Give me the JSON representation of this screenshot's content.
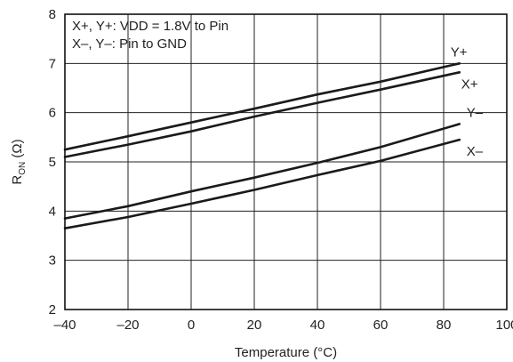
{
  "chart_data": {
    "type": "line",
    "title": "",
    "xlabel": "Temperature (°C)",
    "ylabel": {
      "main": "R",
      "sub": "ON",
      "unit": " (Ω)"
    },
    "xlim": [
      -40,
      100
    ],
    "ylim": [
      2,
      8
    ],
    "xticks": [
      -40,
      -20,
      0,
      20,
      40,
      60,
      80,
      100
    ],
    "yticks": [
      2,
      3,
      4,
      5,
      6,
      7,
      8
    ],
    "grid": true,
    "annotations": [
      "X+, Y+: VDD = 1.8V to Pin",
      "X–, Y–: Pin to GND"
    ],
    "series": [
      {
        "name": "Y+",
        "x": [
          -40,
          -20,
          0,
          20,
          40,
          60,
          85
        ],
        "y": [
          5.25,
          5.52,
          5.8,
          6.08,
          6.37,
          6.63,
          7.0
        ]
      },
      {
        "name": "X+",
        "x": [
          -40,
          -20,
          0,
          20,
          40,
          60,
          85
        ],
        "y": [
          5.1,
          5.35,
          5.62,
          5.92,
          6.2,
          6.47,
          6.82
        ]
      },
      {
        "name": "Y–",
        "x": [
          -40,
          -20,
          0,
          20,
          40,
          60,
          85
        ],
        "y": [
          3.85,
          4.1,
          4.4,
          4.68,
          4.98,
          5.3,
          5.77
        ]
      },
      {
        "name": "X–",
        "x": [
          -40,
          -20,
          0,
          20,
          40,
          60,
          85
        ],
        "y": [
          3.65,
          3.88,
          4.15,
          4.43,
          4.73,
          5.02,
          5.45
        ]
      }
    ]
  }
}
